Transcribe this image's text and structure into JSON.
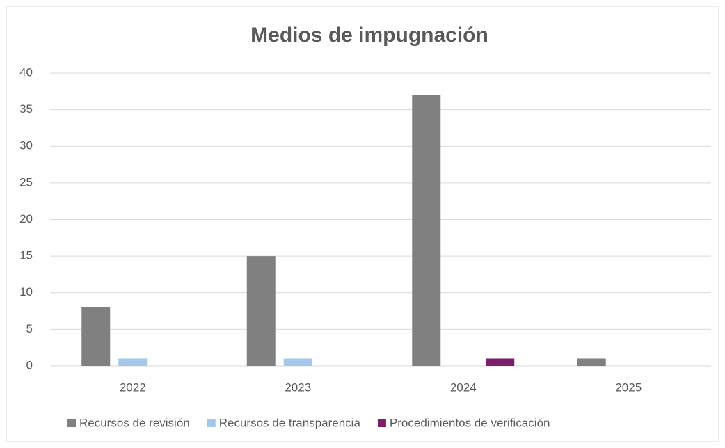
{
  "chart_data": {
    "type": "bar",
    "title": "Medios de impugnación",
    "categories": [
      "2022",
      "2023",
      "2024",
      "2025"
    ],
    "series": [
      {
        "name": "Recursos de revisión",
        "color": "#808080",
        "values": [
          8,
          15,
          37,
          1
        ]
      },
      {
        "name": "Recursos de transparencia",
        "color": "#a4c8ea",
        "values": [
          1,
          1,
          0,
          0
        ]
      },
      {
        "name": "Procedimientos de verificación",
        "color": "#7a1f6b",
        "values": [
          0,
          0,
          1,
          0
        ]
      }
    ],
    "ylim": [
      0,
      40
    ],
    "yticks": [
      0,
      5,
      10,
      15,
      20,
      25,
      30,
      35,
      40
    ],
    "grid": true,
    "legend": "bottom"
  }
}
